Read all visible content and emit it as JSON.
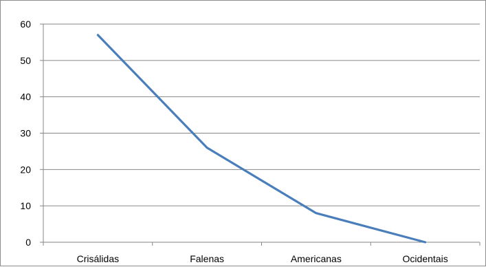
{
  "chart_data": {
    "type": "line",
    "categories": [
      "Crisálidas",
      "Falenas",
      "Americanas",
      "Ocidentais"
    ],
    "series": [
      {
        "values": [
          57,
          26,
          8,
          0
        ],
        "color": "#4a7ebb"
      }
    ],
    "title": "",
    "xlabel": "",
    "ylabel": "",
    "ylim": [
      0,
      60
    ],
    "yticks": [
      0,
      10,
      20,
      30,
      40,
      50,
      60
    ],
    "grid": true,
    "legend": "none"
  }
}
